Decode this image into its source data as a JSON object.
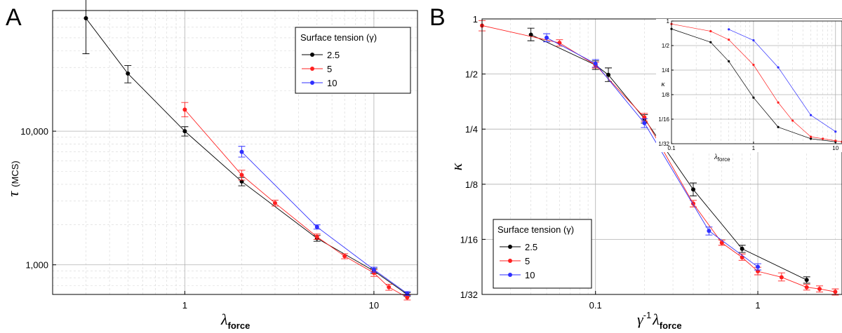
{
  "chart_data": [
    {
      "panel_letter": "A",
      "type": "line",
      "x_scale": "log",
      "y_scale": "log",
      "xlim": [
        0.2,
        17
      ],
      "ylim": [
        600,
        80000
      ],
      "xlabel": "λ",
      "xlabel_sub": "force",
      "ylabel": "τ",
      "ylabel_unit": "(MCS)",
      "x_ticks": [
        {
          "value": 1,
          "label": "1"
        },
        {
          "value": 10,
          "label": "10"
        }
      ],
      "y_ticks": [
        {
          "value": 1000,
          "label": "1,000"
        },
        {
          "value": 10000,
          "label": "10,000"
        }
      ],
      "grid": true,
      "legend": {
        "title": "Surface tension (γ)",
        "position": "top-right"
      },
      "series": [
        {
          "name": "2.5",
          "color": "#000000",
          "points": [
            {
              "x": 0.3,
              "y": 70000,
              "err": [
                38000,
                110000
              ]
            },
            {
              "x": 0.5,
              "y": 27000,
              "err": [
                23000,
                31000
              ]
            },
            {
              "x": 1,
              "y": 10000,
              "err": [
                9200,
                10800
              ]
            },
            {
              "x": 2,
              "y": 4200,
              "err": [
                3900,
                4500
              ]
            },
            {
              "x": 5,
              "y": 1580,
              "err": [
                1500,
                1660
              ]
            },
            {
              "x": 10,
              "y": 900,
              "err": [
                860,
                940
              ]
            },
            {
              "x": 15,
              "y": 600,
              "err": [
                580,
                620
              ]
            }
          ]
        },
        {
          "name": "5",
          "color": "#ff2020",
          "points": [
            {
              "x": 1,
              "y": 14500,
              "err": [
                12800,
                16400
              ]
            },
            {
              "x": 2,
              "y": 4700,
              "err": [
                4300,
                5100
              ]
            },
            {
              "x": 3,
              "y": 2900,
              "err": [
                2750,
                3050
              ]
            },
            {
              "x": 5,
              "y": 1620,
              "err": [
                1550,
                1700
              ]
            },
            {
              "x": 7,
              "y": 1160,
              "err": [
                1110,
                1210
              ]
            },
            {
              "x": 10,
              "y": 870,
              "err": [
                820,
                920
              ]
            },
            {
              "x": 12,
              "y": 680,
              "err": [
                645,
                715
              ]
            },
            {
              "x": 15,
              "y": 570,
              "err": [
                545,
                595
              ]
            }
          ]
        },
        {
          "name": "10",
          "color": "#2f2fff",
          "points": [
            {
              "x": 2,
              "y": 7000,
              "err": [
                6400,
                7700
              ]
            },
            {
              "x": 5,
              "y": 1920,
              "err": [
                1850,
                1990
              ]
            },
            {
              "x": 10,
              "y": 920,
              "err": [
                880,
                960
              ]
            },
            {
              "x": 15,
              "y": 610,
              "err": [
                590,
                630
              ]
            }
          ]
        }
      ]
    },
    {
      "panel_letter": "B",
      "type": "line",
      "x_scale": "log",
      "y_scale": "log2",
      "xlim": [
        0.02,
        3.3
      ],
      "ylim": [
        0.03125,
        1
      ],
      "xlabel": "γ",
      "xlabel_sup": "-1",
      "xlabel_mid": "λ",
      "xlabel_sub": "force",
      "ylabel": "κ",
      "x_ticks": [
        {
          "value": 0.1,
          "label": "0.1"
        },
        {
          "value": 1,
          "label": "1"
        }
      ],
      "y_ticks": [
        {
          "value": 1,
          "label": "1"
        },
        {
          "value": 0.5,
          "label": "1/2"
        },
        {
          "value": 0.25,
          "label": "1/4"
        },
        {
          "value": 0.125,
          "label": "1/8"
        },
        {
          "value": 0.0625,
          "label": "1/16"
        },
        {
          "value": 0.03125,
          "label": "1/32"
        }
      ],
      "grid": true,
      "legend": {
        "title": "Surface tension (γ)",
        "position": "bottom-left"
      },
      "series": [
        {
          "name": "2.5",
          "color": "#000000",
          "points": [
            {
              "x": 0.04,
              "y": 0.82,
              "err": [
                0.76,
                0.89
              ]
            },
            {
              "x": 0.1,
              "y": 0.56,
              "err": [
                0.53,
                0.59
              ]
            },
            {
              "x": 0.12,
              "y": 0.495,
              "err": [
                0.455,
                0.54
              ]
            },
            {
              "x": 0.2,
              "y": 0.285,
              "err": [
                0.27,
                0.3
              ]
            },
            {
              "x": 0.4,
              "y": 0.117,
              "err": [
                0.108,
                0.127
              ]
            },
            {
              "x": 0.8,
              "y": 0.0555,
              "err": [
                0.053,
                0.058
              ]
            },
            {
              "x": 2,
              "y": 0.0375,
              "err": [
                0.036,
                0.039
              ]
            }
          ]
        },
        {
          "name": "5",
          "color": "#ff2020",
          "points": [
            {
              "x": 0.02,
              "y": 0.92,
              "err": [
                0.86,
                0.98
              ]
            },
            {
              "x": 0.06,
              "y": 0.74,
              "err": [
                0.71,
                0.77
              ]
            },
            {
              "x": 0.1,
              "y": 0.56,
              "err": [
                0.54,
                0.58
              ]
            },
            {
              "x": 0.2,
              "y": 0.29,
              "err": [
                0.276,
                0.305
              ]
            },
            {
              "x": 0.4,
              "y": 0.098,
              "err": [
                0.094,
                0.102
              ]
            },
            {
              "x": 0.6,
              "y": 0.0598,
              "err": [
                0.058,
                0.062
              ]
            },
            {
              "x": 0.8,
              "y": 0.0498,
              "err": [
                0.048,
                0.052
              ]
            },
            {
              "x": 1,
              "y": 0.0418,
              "err": [
                0.04,
                0.044
              ]
            },
            {
              "x": 1.4,
              "y": 0.0388,
              "err": [
                0.037,
                0.041
              ]
            },
            {
              "x": 2,
              "y": 0.0342,
              "err": [
                0.033,
                0.0355
              ]
            },
            {
              "x": 2.4,
              "y": 0.0335,
              "err": [
                0.0322,
                0.0348
              ]
            },
            {
              "x": 3,
              "y": 0.0323,
              "err": [
                0.031,
                0.0335
              ]
            }
          ]
        },
        {
          "name": "10",
          "color": "#2f2fff",
          "points": [
            {
              "x": 0.05,
              "y": 0.79,
              "err": [
                0.75,
                0.83
              ]
            },
            {
              "x": 0.1,
              "y": 0.57,
              "err": [
                0.545,
                0.6
              ]
            },
            {
              "x": 0.2,
              "y": 0.27,
              "err": [
                0.255,
                0.285
              ]
            },
            {
              "x": 0.5,
              "y": 0.0695,
              "err": [
                0.066,
                0.073
              ]
            },
            {
              "x": 1,
              "y": 0.0442,
              "err": [
                0.0425,
                0.046
              ]
            }
          ]
        }
      ]
    },
    {
      "panel_letter": "",
      "type": "line",
      "is_inset": true,
      "x_scale": "log",
      "y_scale": "log2",
      "xlim": [
        0.1,
        12
      ],
      "ylim": [
        0.03125,
        1
      ],
      "xlabel": "λ",
      "xlabel_sub": "force",
      "ylabel": "κ",
      "x_ticks": [
        {
          "value": 0.1,
          "label": "0.1"
        },
        {
          "value": 1,
          "label": "1"
        },
        {
          "value": 10,
          "label": "10"
        }
      ],
      "y_ticks": [
        {
          "value": 1,
          "label": "1"
        },
        {
          "value": 0.5,
          "label": "1/2"
        },
        {
          "value": 0.25,
          "label": "1/4"
        },
        {
          "value": 0.125,
          "label": "1/8"
        },
        {
          "value": 0.0625,
          "label": "1/16"
        },
        {
          "value": 0.03125,
          "label": "1/32"
        }
      ],
      "grid": true,
      "series": [
        {
          "name": "2.5",
          "color": "#000000",
          "points": [
            {
              "x": 0.1,
              "y": 0.8
            },
            {
              "x": 0.3,
              "y": 0.55
            },
            {
              "x": 0.5,
              "y": 0.32
            },
            {
              "x": 1,
              "y": 0.115
            },
            {
              "x": 2,
              "y": 0.05
            },
            {
              "x": 5,
              "y": 0.036
            },
            {
              "x": 10,
              "y": 0.033
            }
          ]
        },
        {
          "name": "5",
          "color": "#ff2020",
          "points": [
            {
              "x": 0.1,
              "y": 0.92
            },
            {
              "x": 0.3,
              "y": 0.75
            },
            {
              "x": 0.5,
              "y": 0.59
            },
            {
              "x": 1,
              "y": 0.29
            },
            {
              "x": 2,
              "y": 0.1
            },
            {
              "x": 3,
              "y": 0.06
            },
            {
              "x": 5,
              "y": 0.038
            },
            {
              "x": 7,
              "y": 0.036
            },
            {
              "x": 10,
              "y": 0.034
            },
            {
              "x": 12,
              "y": 0.033
            }
          ]
        },
        {
          "name": "10",
          "color": "#2f2fff",
          "points": [
            {
              "x": 0.5,
              "y": 0.79
            },
            {
              "x": 1,
              "y": 0.58
            },
            {
              "x": 2,
              "y": 0.27
            },
            {
              "x": 5,
              "y": 0.07
            },
            {
              "x": 10,
              "y": 0.044
            }
          ]
        }
      ]
    }
  ]
}
